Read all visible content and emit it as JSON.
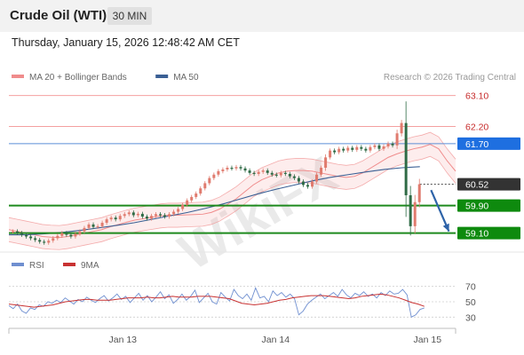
{
  "header": {
    "title": "Crude Oil (WTI)",
    "timeframe": "30 MIN"
  },
  "datetime": "Thursday, January 15, 2026 12:48:42 AM CET",
  "credit": "Research © 2026 Trading Central",
  "watermark": "WikiFX",
  "colors": {
    "bollinger": "#f08c8c",
    "ma50": "#3a5f94",
    "up": "#e07b6e",
    "down": "#2f6b46",
    "red_level": "#f4a0a0",
    "red_label": "#c62828",
    "blue_level": "#5b8fd6",
    "blue_badge": "#1e6fe0",
    "green_level": "#1e8a1e",
    "green_badge": "#0e8a0e",
    "current_badge": "#333333",
    "rsi": "#6f8fd0",
    "rsi_ma": "#c83232",
    "arrow": "#2e63a8"
  },
  "chart_data": {
    "type": "candlestick",
    "legend": [
      {
        "name": "MA 20 + Bollinger Bands",
        "color": "#f08c8c"
      },
      {
        "name": "MA 50",
        "color": "#3a5f94"
      }
    ],
    "price_axis": {
      "min": 58.6,
      "max": 63.4
    },
    "x_ticks": [
      {
        "label": "Jan 13",
        "pos": 0.255
      },
      {
        "label": "Jan 14",
        "pos": 0.597
      },
      {
        "label": "Jan 15",
        "pos": 0.937
      }
    ],
    "levels": [
      {
        "value": 63.1,
        "label": "63.10",
        "kind": "resistance",
        "style": "red"
      },
      {
        "value": 62.2,
        "label": "62.20",
        "kind": "resistance",
        "style": "red"
      },
      {
        "value": 61.7,
        "label": "61.70",
        "kind": "pivot",
        "style": "blue"
      },
      {
        "value": 60.52,
        "label": "60.52",
        "kind": "last_price",
        "style": "current"
      },
      {
        "value": 59.9,
        "label": "59.90",
        "kind": "support",
        "style": "green"
      },
      {
        "value": 59.1,
        "label": "59.10",
        "kind": "support",
        "style": "green"
      }
    ],
    "closes": [
      59.15,
      59.1,
      59.05,
      59.0,
      58.95,
      58.9,
      58.85,
      58.82,
      58.88,
      58.95,
      59.02,
      59.1,
      59.05,
      59.0,
      59.08,
      59.15,
      59.25,
      59.35,
      59.28,
      59.3,
      59.4,
      59.5,
      59.55,
      59.5,
      59.6,
      59.65,
      59.7,
      59.62,
      59.66,
      59.58,
      59.52,
      59.6,
      59.65,
      59.62,
      59.58,
      59.65,
      59.72,
      59.8,
      59.92,
      60.05,
      60.15,
      60.25,
      60.4,
      60.55,
      60.7,
      60.8,
      60.9,
      60.95,
      61.0,
      60.98,
      61.02,
      60.98,
      60.92,
      60.85,
      60.82,
      60.88,
      60.92,
      60.85,
      60.8,
      60.78,
      60.85,
      60.82,
      60.75,
      60.7,
      60.6,
      60.5,
      60.45,
      60.6,
      60.8,
      61.0,
      61.3,
      61.5,
      61.45,
      61.55,
      61.5,
      61.58,
      61.52,
      61.6,
      61.55,
      61.5,
      61.6,
      61.65,
      61.55,
      61.62,
      61.7,
      61.65,
      62.0,
      62.3,
      60.2,
      59.3,
      60.0,
      60.52
    ],
    "bollinger_mid": [
      59.2,
      59.15,
      59.1,
      59.05,
      59.0,
      58.98,
      58.97,
      59.0,
      59.05,
      59.1,
      59.15,
      59.2,
      59.28,
      59.35,
      59.42,
      59.48,
      59.52,
      59.56,
      59.6,
      59.62,
      59.62,
      59.63,
      59.64,
      59.65,
      59.7,
      59.8,
      59.95,
      60.1,
      60.3,
      60.5,
      60.65,
      60.75,
      60.85,
      60.9,
      60.92,
      60.92,
      60.9,
      60.85,
      60.8,
      60.75,
      60.72,
      60.75,
      60.85,
      61.0,
      61.15,
      61.3,
      61.4,
      61.48,
      61.55,
      61.6,
      61.68,
      61.55,
      61.2,
      60.9
    ],
    "bollinger_x": [
      0.0,
      0.019,
      0.038,
      0.057,
      0.075,
      0.094,
      0.113,
      0.132,
      0.151,
      0.17,
      0.189,
      0.208,
      0.226,
      0.245,
      0.264,
      0.283,
      0.302,
      0.321,
      0.34,
      0.358,
      0.377,
      0.396,
      0.415,
      0.434,
      0.453,
      0.472,
      0.491,
      0.509,
      0.528,
      0.547,
      0.566,
      0.585,
      0.604,
      0.623,
      0.642,
      0.66,
      0.679,
      0.698,
      0.717,
      0.736,
      0.755,
      0.774,
      0.792,
      0.811,
      0.83,
      0.849,
      0.868,
      0.887,
      0.906,
      0.925,
      0.943,
      0.962,
      0.981,
      1.0
    ],
    "bollinger_width": 0.35,
    "ma50": [
      59.05,
      59.05,
      59.08,
      59.12,
      59.18,
      59.25,
      59.32,
      59.4,
      59.5,
      59.6,
      59.7,
      59.82,
      59.95,
      60.1,
      60.25,
      60.38,
      60.5,
      60.62,
      60.72,
      60.8,
      60.88,
      60.95,
      61.0,
      61.03
    ],
    "rsi": {
      "axis": [
        30,
        50,
        70
      ],
      "min": 20,
      "max": 80,
      "legend": [
        {
          "name": "RSI",
          "color": "#6f8fd0"
        },
        {
          "name": "9MA",
          "color": "#c83232"
        }
      ],
      "values": [
        45,
        41,
        47,
        38,
        35,
        42,
        40,
        46,
        44,
        50,
        48,
        52,
        49,
        55,
        51,
        47,
        53,
        50,
        56,
        52,
        49,
        54,
        58,
        51,
        55,
        60,
        53,
        57,
        49,
        55,
        61,
        52,
        58,
        50,
        56,
        63,
        54,
        59,
        48,
        53,
        60,
        52,
        57,
        65,
        49,
        55,
        61,
        50,
        47,
        62,
        56,
        51,
        66,
        58,
        54,
        60,
        52,
        68,
        55,
        57,
        50,
        64,
        58,
        62,
        56,
        60,
        54,
        33,
        38,
        47,
        52,
        56,
        60,
        54,
        58,
        62,
        57,
        66,
        59,
        55,
        61,
        58,
        63,
        57,
        60,
        55,
        62,
        58,
        64,
        60,
        61,
        66,
        59,
        30,
        33,
        40,
        42
      ],
      "ma": [
        47,
        46,
        45,
        44,
        43,
        44,
        45,
        46,
        48,
        50,
        51,
        52,
        53,
        53,
        52,
        52,
        52,
        53,
        54,
        55,
        55,
        55,
        56,
        55,
        55,
        56,
        57,
        56,
        56,
        56,
        57,
        57,
        57,
        56,
        55,
        54,
        51,
        48,
        47,
        46,
        47,
        48,
        50,
        52,
        53,
        55,
        56,
        57,
        58,
        58,
        58,
        57,
        56,
        55,
        54,
        55,
        57,
        58,
        59,
        60,
        59,
        57,
        55,
        52,
        49,
        47,
        44
      ]
    }
  }
}
